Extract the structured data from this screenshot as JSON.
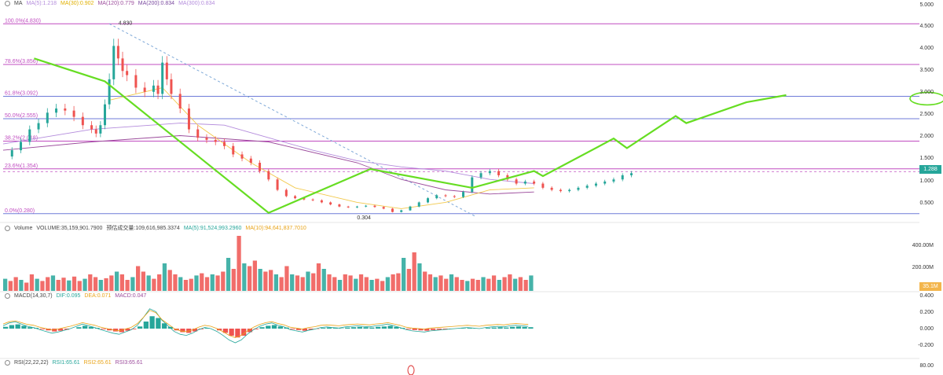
{
  "chart_data": [
    {
      "type": "candlestick",
      "panel": "price",
      "legend": {
        "name": "MA",
        "items": [
          {
            "text": "MA(5):1.218",
            "color": "#b48cdc"
          },
          {
            "text": "MA(30):0.902",
            "color": "#f2c94c"
          },
          {
            "text": "MA(120):0.779",
            "color": "#9b4a9b"
          },
          {
            "text": "MA(200):0.834",
            "color": "#7b4aa0"
          },
          {
            "text": "MA(300):0.834",
            "color": "#b48cdc"
          }
        ]
      },
      "y_ticks": [
        "5.000",
        "4.500",
        "4.000",
        "3.500",
        "3.000",
        "2.500",
        "2.000",
        "1.500",
        "1.000",
        "0.500"
      ],
      "y_tick_values": [
        5.0,
        4.5,
        4.0,
        3.5,
        3.0,
        2.5,
        2.0,
        1.5,
        1.0,
        0.5
      ],
      "ylim": [
        0.2,
        5.25
      ],
      "fib_levels": [
        {
          "label": "100.0%(4.830)",
          "value": 4.83
        },
        {
          "label": "78.6%(3.856)",
          "value": 3.856
        },
        {
          "label": "61.8%(3.092)",
          "value": 3.092
        },
        {
          "label": "50.0%(2.555)",
          "value": 2.555
        },
        {
          "label": "38.2%(2.018)",
          "value": 2.018
        },
        {
          "label": "23.6%(1.354)",
          "value": 1.354
        },
        {
          "label": "0.0%(0.280)",
          "value": 0.28
        }
      ],
      "high_marker": "4.830",
      "low_marker": "0.304",
      "current_price": "1.288",
      "projection_path": [
        [
          0.035,
          4.0
        ],
        [
          0.115,
          3.45
        ],
        [
          0.3,
          0.3
        ],
        [
          0.415,
          1.35
        ],
        [
          0.53,
          0.9
        ],
        [
          0.6,
          1.3
        ],
        [
          0.61,
          1.18
        ],
        [
          0.69,
          2.08
        ],
        [
          0.705,
          1.85
        ],
        [
          0.76,
          2.62
        ],
        [
          0.772,
          2.45
        ],
        [
          0.84,
          2.95
        ],
        [
          0.885,
          3.12
        ]
      ],
      "price_path": [
        [
          0.0,
          1.65
        ],
        [
          0.01,
          1.8
        ],
        [
          0.02,
          2.0
        ],
        [
          0.03,
          2.3
        ],
        [
          0.04,
          2.45
        ],
        [
          0.05,
          2.7
        ],
        [
          0.06,
          2.8
        ],
        [
          0.07,
          2.75
        ],
        [
          0.08,
          2.6
        ],
        [
          0.09,
          2.4
        ],
        [
          0.1,
          2.3
        ],
        [
          0.105,
          2.2
        ],
        [
          0.11,
          2.4
        ],
        [
          0.115,
          2.9
        ],
        [
          0.12,
          3.5
        ],
        [
          0.125,
          4.3
        ],
        [
          0.13,
          4.0
        ],
        [
          0.135,
          3.7
        ],
        [
          0.14,
          3.6
        ],
        [
          0.15,
          3.3
        ],
        [
          0.16,
          3.2
        ],
        [
          0.17,
          3.35
        ],
        [
          0.175,
          3.15
        ],
        [
          0.18,
          3.9
        ],
        [
          0.185,
          3.5
        ],
        [
          0.19,
          3.15
        ],
        [
          0.2,
          2.8
        ],
        [
          0.21,
          2.3
        ],
        [
          0.22,
          2.1
        ],
        [
          0.23,
          2.05
        ],
        [
          0.24,
          2.0
        ],
        [
          0.25,
          1.9
        ],
        [
          0.26,
          1.7
        ],
        [
          0.27,
          1.6
        ],
        [
          0.28,
          1.5
        ],
        [
          0.29,
          1.3
        ],
        [
          0.3,
          1.1
        ],
        [
          0.31,
          0.85
        ],
        [
          0.32,
          0.7
        ],
        [
          0.33,
          0.65
        ],
        [
          0.34,
          0.62
        ],
        [
          0.35,
          0.6
        ],
        [
          0.36,
          0.55
        ],
        [
          0.37,
          0.5
        ],
        [
          0.38,
          0.45
        ],
        [
          0.39,
          0.43
        ],
        [
          0.4,
          0.45
        ],
        [
          0.41,
          0.47
        ],
        [
          0.42,
          0.44
        ],
        [
          0.43,
          0.4
        ],
        [
          0.44,
          0.32
        ],
        [
          0.45,
          0.36
        ],
        [
          0.46,
          0.45
        ],
        [
          0.47,
          0.55
        ],
        [
          0.48,
          0.65
        ],
        [
          0.49,
          0.72
        ],
        [
          0.5,
          0.7
        ],
        [
          0.51,
          0.68
        ],
        [
          0.52,
          0.8
        ],
        [
          0.53,
          1.15
        ],
        [
          0.54,
          1.25
        ],
        [
          0.55,
          1.3
        ],
        [
          0.56,
          1.2
        ],
        [
          0.57,
          1.1
        ],
        [
          0.58,
          1.0
        ],
        [
          0.59,
          1.05
        ],
        [
          0.6,
          1.0
        ],
        [
          0.61,
          0.9
        ],
        [
          0.62,
          0.85
        ],
        [
          0.63,
          0.82
        ],
        [
          0.64,
          0.85
        ],
        [
          0.65,
          0.9
        ],
        [
          0.66,
          0.95
        ],
        [
          0.67,
          1.0
        ],
        [
          0.68,
          1.05
        ],
        [
          0.69,
          1.1
        ],
        [
          0.7,
          1.2
        ],
        [
          0.71,
          1.25
        ]
      ]
    },
    {
      "type": "bar",
      "panel": "volume",
      "legend": [
        {
          "text": "Volume",
          "color": "#444444"
        },
        {
          "text": "VOLUME:35,159,901.7900",
          "color": "#444444"
        },
        {
          "text": "预估成交量:109,616,985.3374",
          "color": "#444444"
        },
        {
          "text": "MA(5):91,524,993.2960",
          "color": "#26a69a"
        },
        {
          "text": "MA(10):94,641,837.7010",
          "color": "#e8a317"
        }
      ],
      "y_ticks": [
        "400.00M",
        "200.00M"
      ],
      "last_volume": "35.1M",
      "values": [
        0.22,
        0.18,
        0.25,
        0.2,
        0.15,
        0.3,
        0.22,
        0.18,
        0.25,
        0.28,
        0.2,
        0.24,
        0.19,
        0.26,
        0.18,
        0.22,
        0.3,
        0.25,
        0.2,
        0.23,
        0.28,
        0.35,
        0.3,
        0.2,
        0.25,
        0.45,
        0.35,
        0.28,
        0.22,
        0.3,
        0.5,
        0.38,
        0.3,
        0.25,
        0.2,
        0.22,
        0.28,
        0.32,
        0.25,
        0.3,
        0.28,
        0.35,
        0.6,
        0.4,
        1.0,
        0.5,
        0.45,
        0.55,
        0.4,
        0.35,
        0.38,
        0.3,
        0.25,
        0.45,
        0.3,
        0.28,
        0.25,
        0.35,
        0.32,
        0.5,
        0.4,
        0.3,
        0.25,
        0.2,
        0.3,
        0.28,
        0.22,
        0.3,
        0.25,
        0.2,
        0.22,
        0.18,
        0.25,
        0.3,
        0.32,
        0.6,
        0.4,
        0.7,
        0.5,
        0.35,
        0.3,
        0.25,
        0.28,
        0.22,
        0.3,
        0.25,
        0.2,
        0.18,
        0.22,
        0.2,
        0.25,
        0.22,
        0.28,
        0.2,
        0.25,
        0.3,
        0.22,
        0.25,
        0.2,
        0.28
      ]
    },
    {
      "type": "macd",
      "panel": "macd",
      "legend": [
        {
          "text": "MACD(14,30,7)",
          "color": "#444444"
        },
        {
          "text": "DIF:0.095",
          "color": "#26a69a"
        },
        {
          "text": "DEA:0.071",
          "color": "#e8a317"
        },
        {
          "text": "MACD:0.047",
          "color": "#9b4a9b"
        }
      ],
      "y_ticks": [
        "0.400",
        "0.200",
        "0.000",
        "-0.200"
      ],
      "hist": [
        0.05,
        0.1,
        0.12,
        0.08,
        0.04,
        0.02,
        -0.02,
        -0.05,
        -0.08,
        -0.06,
        -0.03,
        0.0,
        0.04,
        0.08,
        0.05,
        0.02,
        -0.02,
        -0.05,
        -0.08,
        -0.1,
        -0.06,
        -0.02,
        0.06,
        0.2,
        0.35,
        0.3,
        0.15,
        0.05,
        -0.05,
        -0.1,
        -0.12,
        -0.08,
        -0.02,
        0.02,
        0.0,
        -0.05,
        -0.12,
        -0.2,
        -0.25,
        -0.2,
        -0.1,
        -0.02,
        0.04,
        0.08,
        0.1,
        0.06,
        0.03,
        -0.02,
        -0.04,
        -0.06,
        -0.03,
        -0.01,
        0.02,
        0.03,
        0.02,
        0.01,
        0.03,
        0.04,
        0.05,
        0.04,
        0.03,
        0.05,
        0.06,
        0.08,
        0.05,
        0.02,
        -0.02,
        -0.04,
        -0.05,
        -0.06,
        -0.04,
        -0.03,
        -0.02,
        -0.01,
        0.0,
        0.01,
        0.02,
        0.01,
        0.0,
        0.02,
        0.03,
        0.04,
        0.03,
        0.05,
        0.06,
        0.05,
        0.04
      ]
    },
    {
      "type": "line",
      "panel": "rsi",
      "legend": [
        {
          "text": "RSI(22,22,22)",
          "color": "#444444"
        },
        {
          "text": "RSI1:65.61",
          "color": "#26a69a"
        },
        {
          "text": "RSI2:65.61",
          "color": "#e8a317"
        },
        {
          "text": "RSI3:65.61",
          "color": "#9b4a9b"
        }
      ],
      "y_ticks": [
        "80.00"
      ]
    }
  ],
  "colors": {
    "up": "#26a69a",
    "down": "#ef5350",
    "projection": "#66dd22",
    "fib_line": "#c04cc0",
    "fib_blue": "#6f7bd8",
    "trend_dash": "#7fa9d8",
    "price_tag": "#26a69a",
    "volume_tag": "#f3b54b"
  }
}
